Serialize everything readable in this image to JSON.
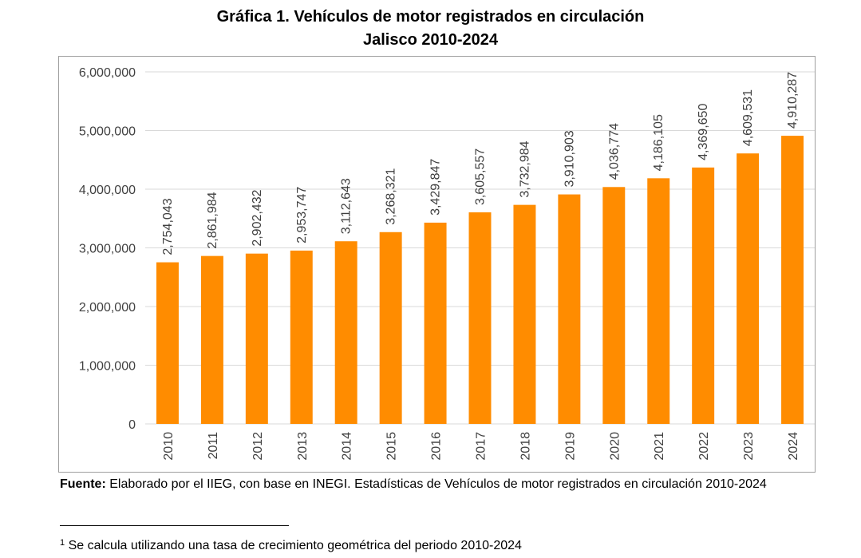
{
  "title": "Gráfica 1. Vehículos de motor registrados en circulación",
  "subtitle": "Jalisco 2010-2024",
  "source_label": "Fuente:",
  "source_text": " Elaborado por el IIEG, con base en INEGI. Estadísticas de Vehículos de motor registrados en circulación 2010-2024",
  "footnote_mark": "1",
  "footnote_text": " Se calcula utilizando una tasa de crecimiento geométrica del periodo 2010-2024",
  "colors": {
    "bar": "#ff8c00",
    "grid": "#d9d9d9",
    "axis_text": "#404040",
    "frame": "#9e9e9e"
  },
  "chart_data": {
    "type": "bar",
    "title": "Gráfica 1. Vehículos de motor registrados en circulación",
    "subtitle": "Jalisco 2010-2024",
    "xlabel": "",
    "ylabel": "",
    "categories": [
      "2010",
      "2011",
      "2012",
      "2013",
      "2014",
      "2015",
      "2016",
      "2017",
      "2018",
      "2019",
      "2020",
      "2021",
      "2022",
      "2023",
      "2024"
    ],
    "values": [
      2754043,
      2861984,
      2902432,
      2953747,
      3112643,
      3268321,
      3429847,
      3605557,
      3732984,
      3910903,
      4036774,
      4186105,
      4369650,
      4609531,
      4910287
    ],
    "data_labels": [
      "2,754,043",
      "2,861,984",
      "2,902,432",
      "2,953,747",
      "3,112,643",
      "3,268,321",
      "3,429,847",
      "3,605,557",
      "3,732,984",
      "3,910,903",
      "4,036,774",
      "4,186,105",
      "4,369,650",
      "4,609,531",
      "4,910,287"
    ],
    "ylim": [
      0,
      6000000
    ],
    "yticks": [
      0,
      1000000,
      2000000,
      3000000,
      4000000,
      5000000,
      6000000
    ],
    "ytick_labels": [
      "0",
      "1,000,000",
      "2,000,000",
      "3,000,000",
      "4,000,000",
      "5,000,000",
      "6,000,000"
    ],
    "grid": true,
    "legend": "none"
  }
}
